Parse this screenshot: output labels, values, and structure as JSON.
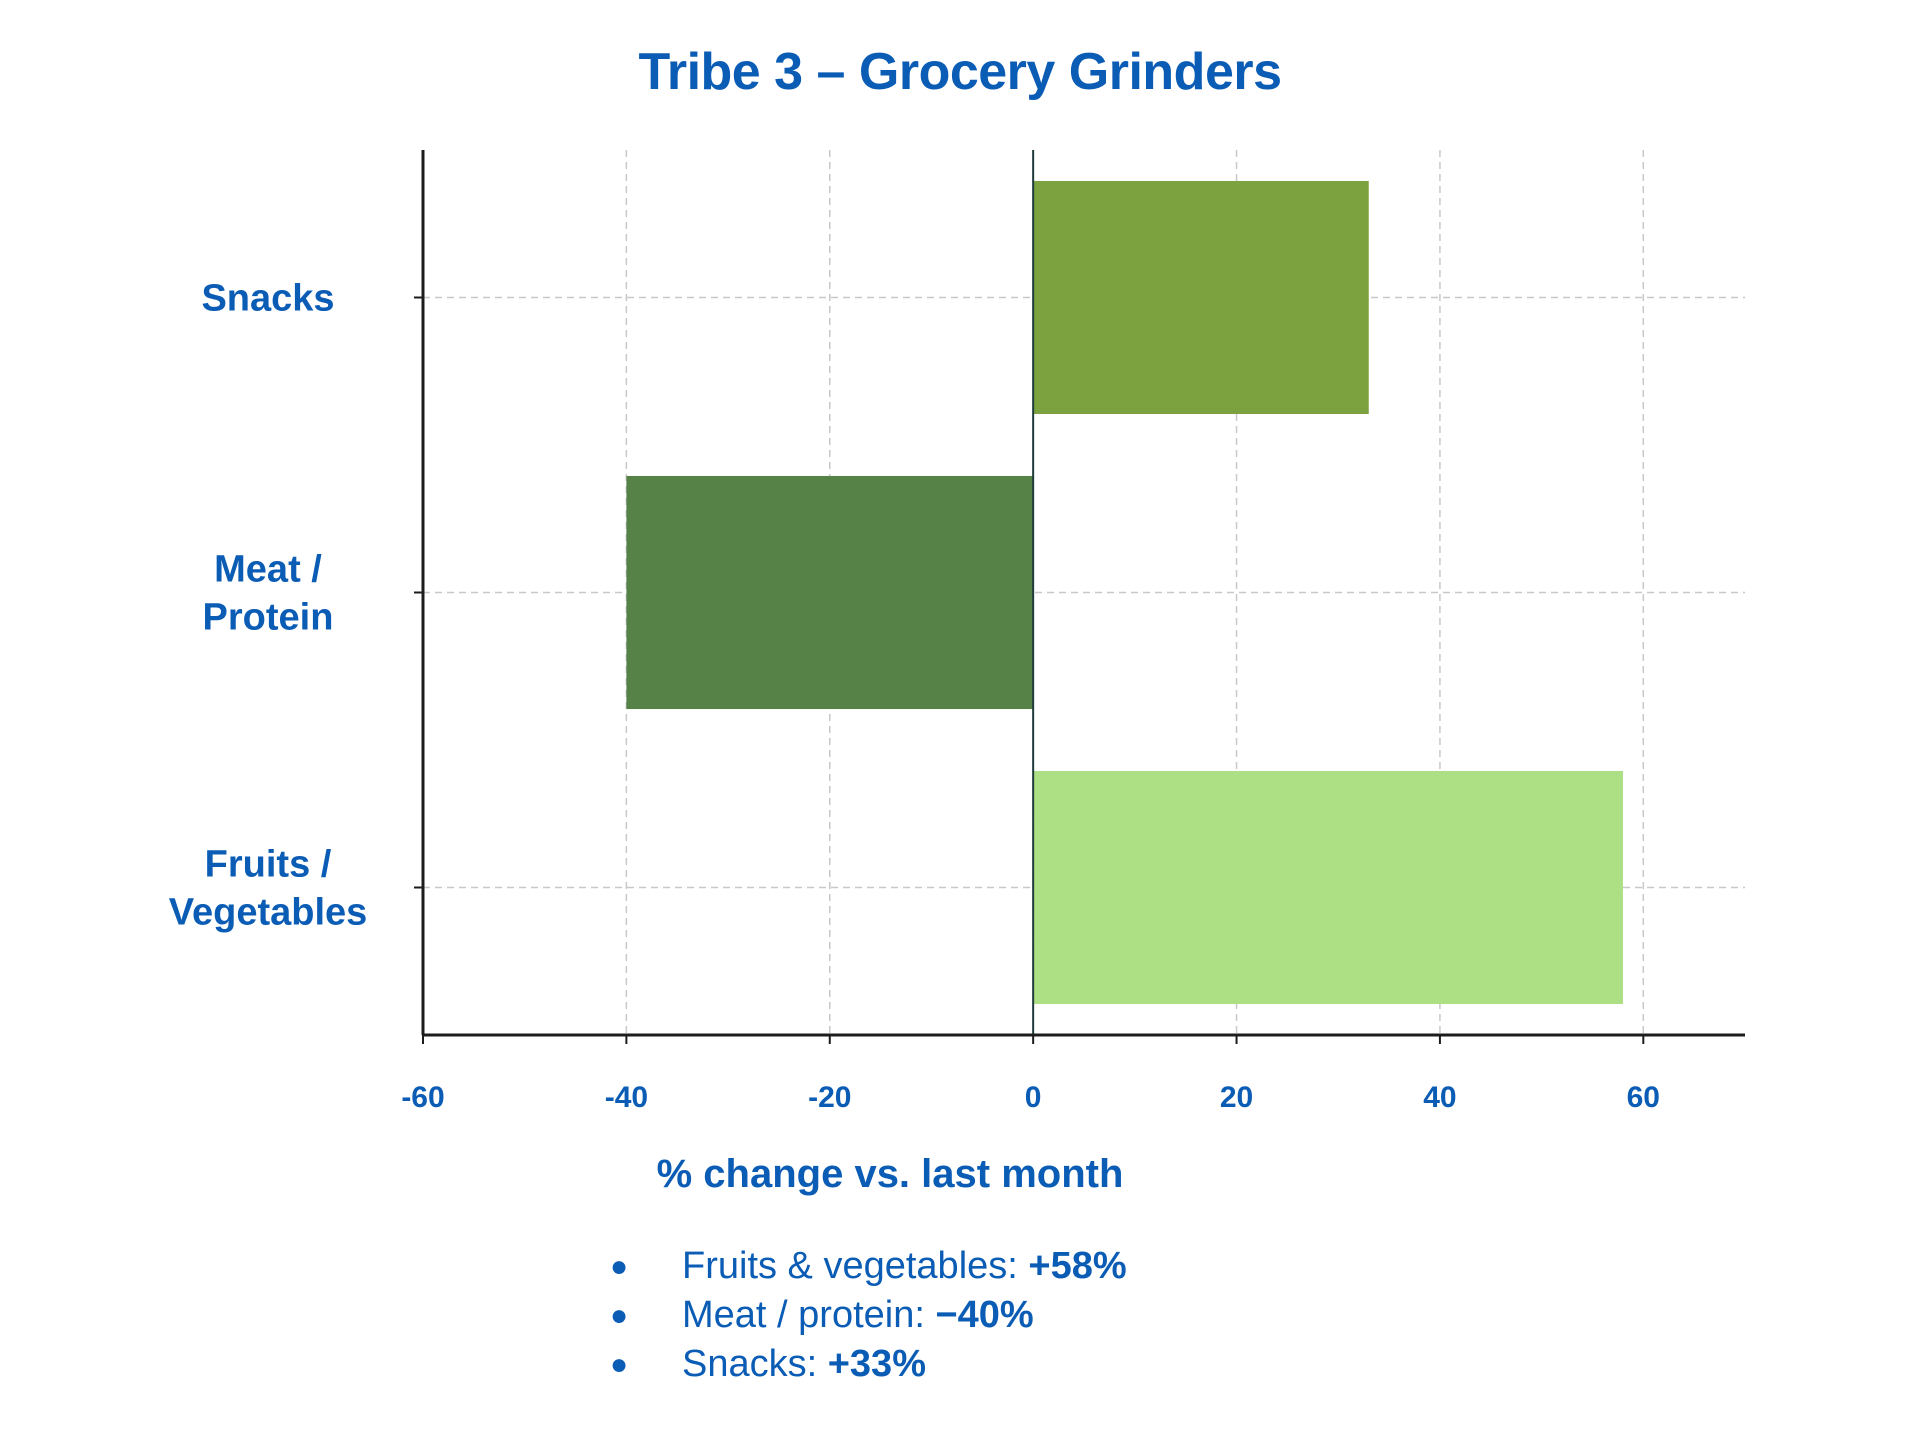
{
  "chart_data": {
    "type": "bar",
    "orientation": "horizontal",
    "title": "Tribe 3 – Grocery Grinders",
    "xlabel": "% change vs. last month",
    "ylabel": "",
    "categories": [
      "Snacks",
      "Meat / Protein",
      "Fruits / Vegetables"
    ],
    "category_lines": [
      [
        "Snacks"
      ],
      [
        "Meat /",
        "Protein"
      ],
      [
        "Fruits /",
        "Vegetables"
      ]
    ],
    "values": [
      33,
      -40,
      58
    ],
    "bar_colors": [
      "#7ba23f",
      "#568247",
      "#ade084"
    ],
    "xlim": [
      -60,
      70
    ],
    "xticks": [
      -60,
      -40,
      -20,
      0,
      20,
      40,
      60
    ],
    "xtick_labels": [
      "-60",
      "-40",
      "-20",
      "0",
      "20",
      "40",
      "60"
    ],
    "grid": true
  },
  "colors": {
    "text": "#0b5cb5",
    "axis": "#1c1c1c",
    "grid": "#c8c8c8"
  },
  "notes": [
    {
      "label": "Fruits & vegetables:",
      "value": "+58%"
    },
    {
      "label": "Meat / protein:",
      "value": "−40%"
    },
    {
      "label": "Snacks:",
      "value": "+33%"
    }
  ],
  "bullet_symbol": "●"
}
